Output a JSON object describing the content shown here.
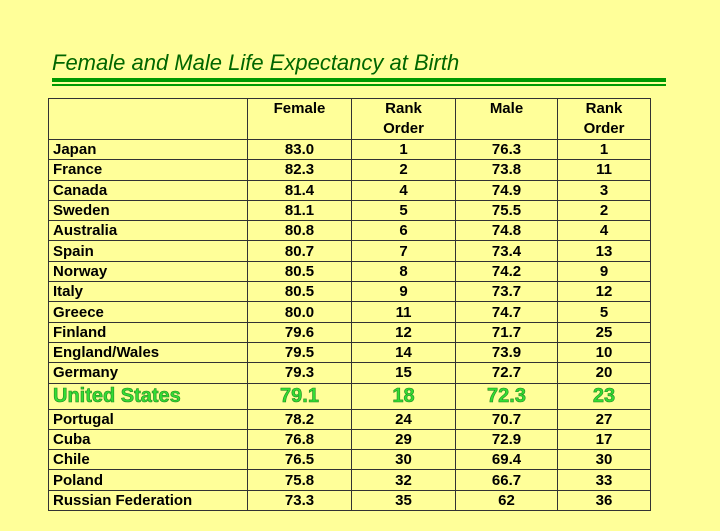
{
  "title": "Female and Male Life Expectancy at Birth",
  "colors": {
    "title": "#006600",
    "rule": "#009900",
    "highlight": "#33dd33",
    "background": "#ffff99"
  },
  "table": {
    "headers": [
      {
        "lines": [
          ""
        ]
      },
      {
        "lines": [
          "Female"
        ]
      },
      {
        "lines": [
          "Rank",
          "Order"
        ]
      },
      {
        "lines": [
          "Male"
        ]
      },
      {
        "lines": [
          "Rank",
          "Order"
        ]
      }
    ],
    "rows": [
      {
        "country": "Japan",
        "female": "83.0",
        "female_rank": "1",
        "male": "76.3",
        "male_rank": "1"
      },
      {
        "country": "France",
        "female": "82.3",
        "female_rank": "2",
        "male": "73.8",
        "male_rank": "11"
      },
      {
        "country": "Canada",
        "female": "81.4",
        "female_rank": "4",
        "male": "74.9",
        "male_rank": "3"
      },
      {
        "country": "Sweden",
        "female": "81.1",
        "female_rank": "5",
        "male": "75.5",
        "male_rank": "2"
      },
      {
        "country": "Australia",
        "female": "80.8",
        "female_rank": "6",
        "male": "74.8",
        "male_rank": "4"
      },
      {
        "country": "Spain",
        "female": "80.7",
        "female_rank": "7",
        "male": "73.4",
        "male_rank": "13"
      },
      {
        "country": "Norway",
        "female": "80.5",
        "female_rank": "8",
        "male": "74.2",
        "male_rank": "9"
      },
      {
        "country": "Italy",
        "female": "80.5",
        "female_rank": "9",
        "male": "73.7",
        "male_rank": "12"
      },
      {
        "country": "Greece",
        "female": "80.0",
        "female_rank": "11",
        "male": "74.7",
        "male_rank": "5"
      },
      {
        "country": "Finland",
        "female": "79.6",
        "female_rank": "12",
        "male": "71.7",
        "male_rank": "25"
      },
      {
        "country": "England/Wales",
        "female": "79.5",
        "female_rank": "14",
        "male": "73.9",
        "male_rank": "10"
      },
      {
        "country": "Germany",
        "female": "79.3",
        "female_rank": "15",
        "male": "72.7",
        "male_rank": "20"
      },
      {
        "country": "United States",
        "female": "79.1",
        "female_rank": "18",
        "male": "72.3",
        "male_rank": "23",
        "highlight": true
      },
      {
        "country": "Portugal",
        "female": "78.2",
        "female_rank": "24",
        "male": "70.7",
        "male_rank": "27"
      },
      {
        "country": "Cuba",
        "female": "76.8",
        "female_rank": "29",
        "male": "72.9",
        "male_rank": "17"
      },
      {
        "country": "Chile",
        "female": "76.5",
        "female_rank": "30",
        "male": "69.4",
        "male_rank": "30"
      },
      {
        "country": "Poland",
        "female": "75.8",
        "female_rank": "32",
        "male": "66.7",
        "male_rank": "33"
      },
      {
        "country": "Russian Federation",
        "female": "73.3",
        "female_rank": "35",
        "male": "62",
        "male_rank": "36"
      }
    ]
  }
}
